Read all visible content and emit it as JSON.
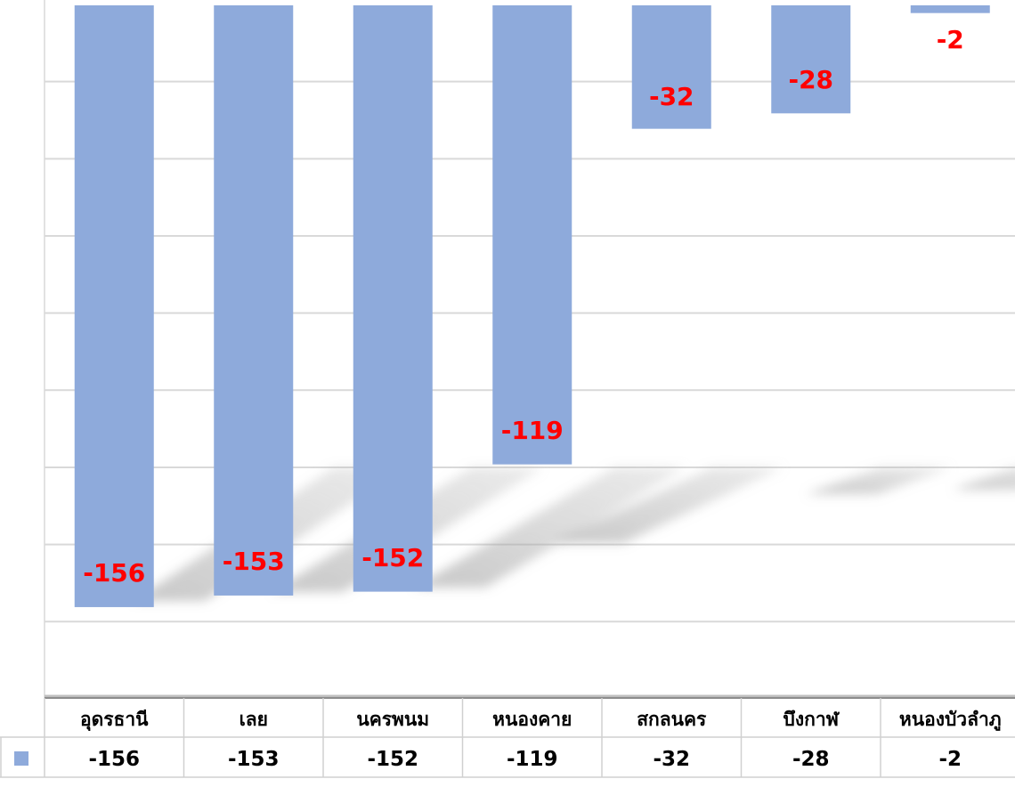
{
  "chart_data": {
    "type": "bar",
    "categories": [
      "อุดรธานี",
      "เลย",
      "นครพนม",
      "หนองคาย",
      "สกลนคร",
      "บึงกาฬ",
      "หนองบัวลำภู"
    ],
    "series": [
      {
        "values": [
          -156,
          -153,
          -152,
          -119,
          -32,
          -28,
          -2
        ]
      }
    ],
    "data_labels": [
      "-156",
      "-153",
      "-152",
      "-119",
      "-32",
      "-28",
      "-2"
    ],
    "table_values": [
      "-156",
      "-153",
      "-152",
      "-119",
      "-32",
      "-28",
      "-2"
    ],
    "ylim": [
      -160,
      0
    ],
    "grid": true,
    "data_table": true,
    "colors": {
      "bar": "#8eaadb",
      "label": "#ff0000",
      "grid": "#d9d9d9",
      "legend_key": "#8eaadb"
    }
  }
}
